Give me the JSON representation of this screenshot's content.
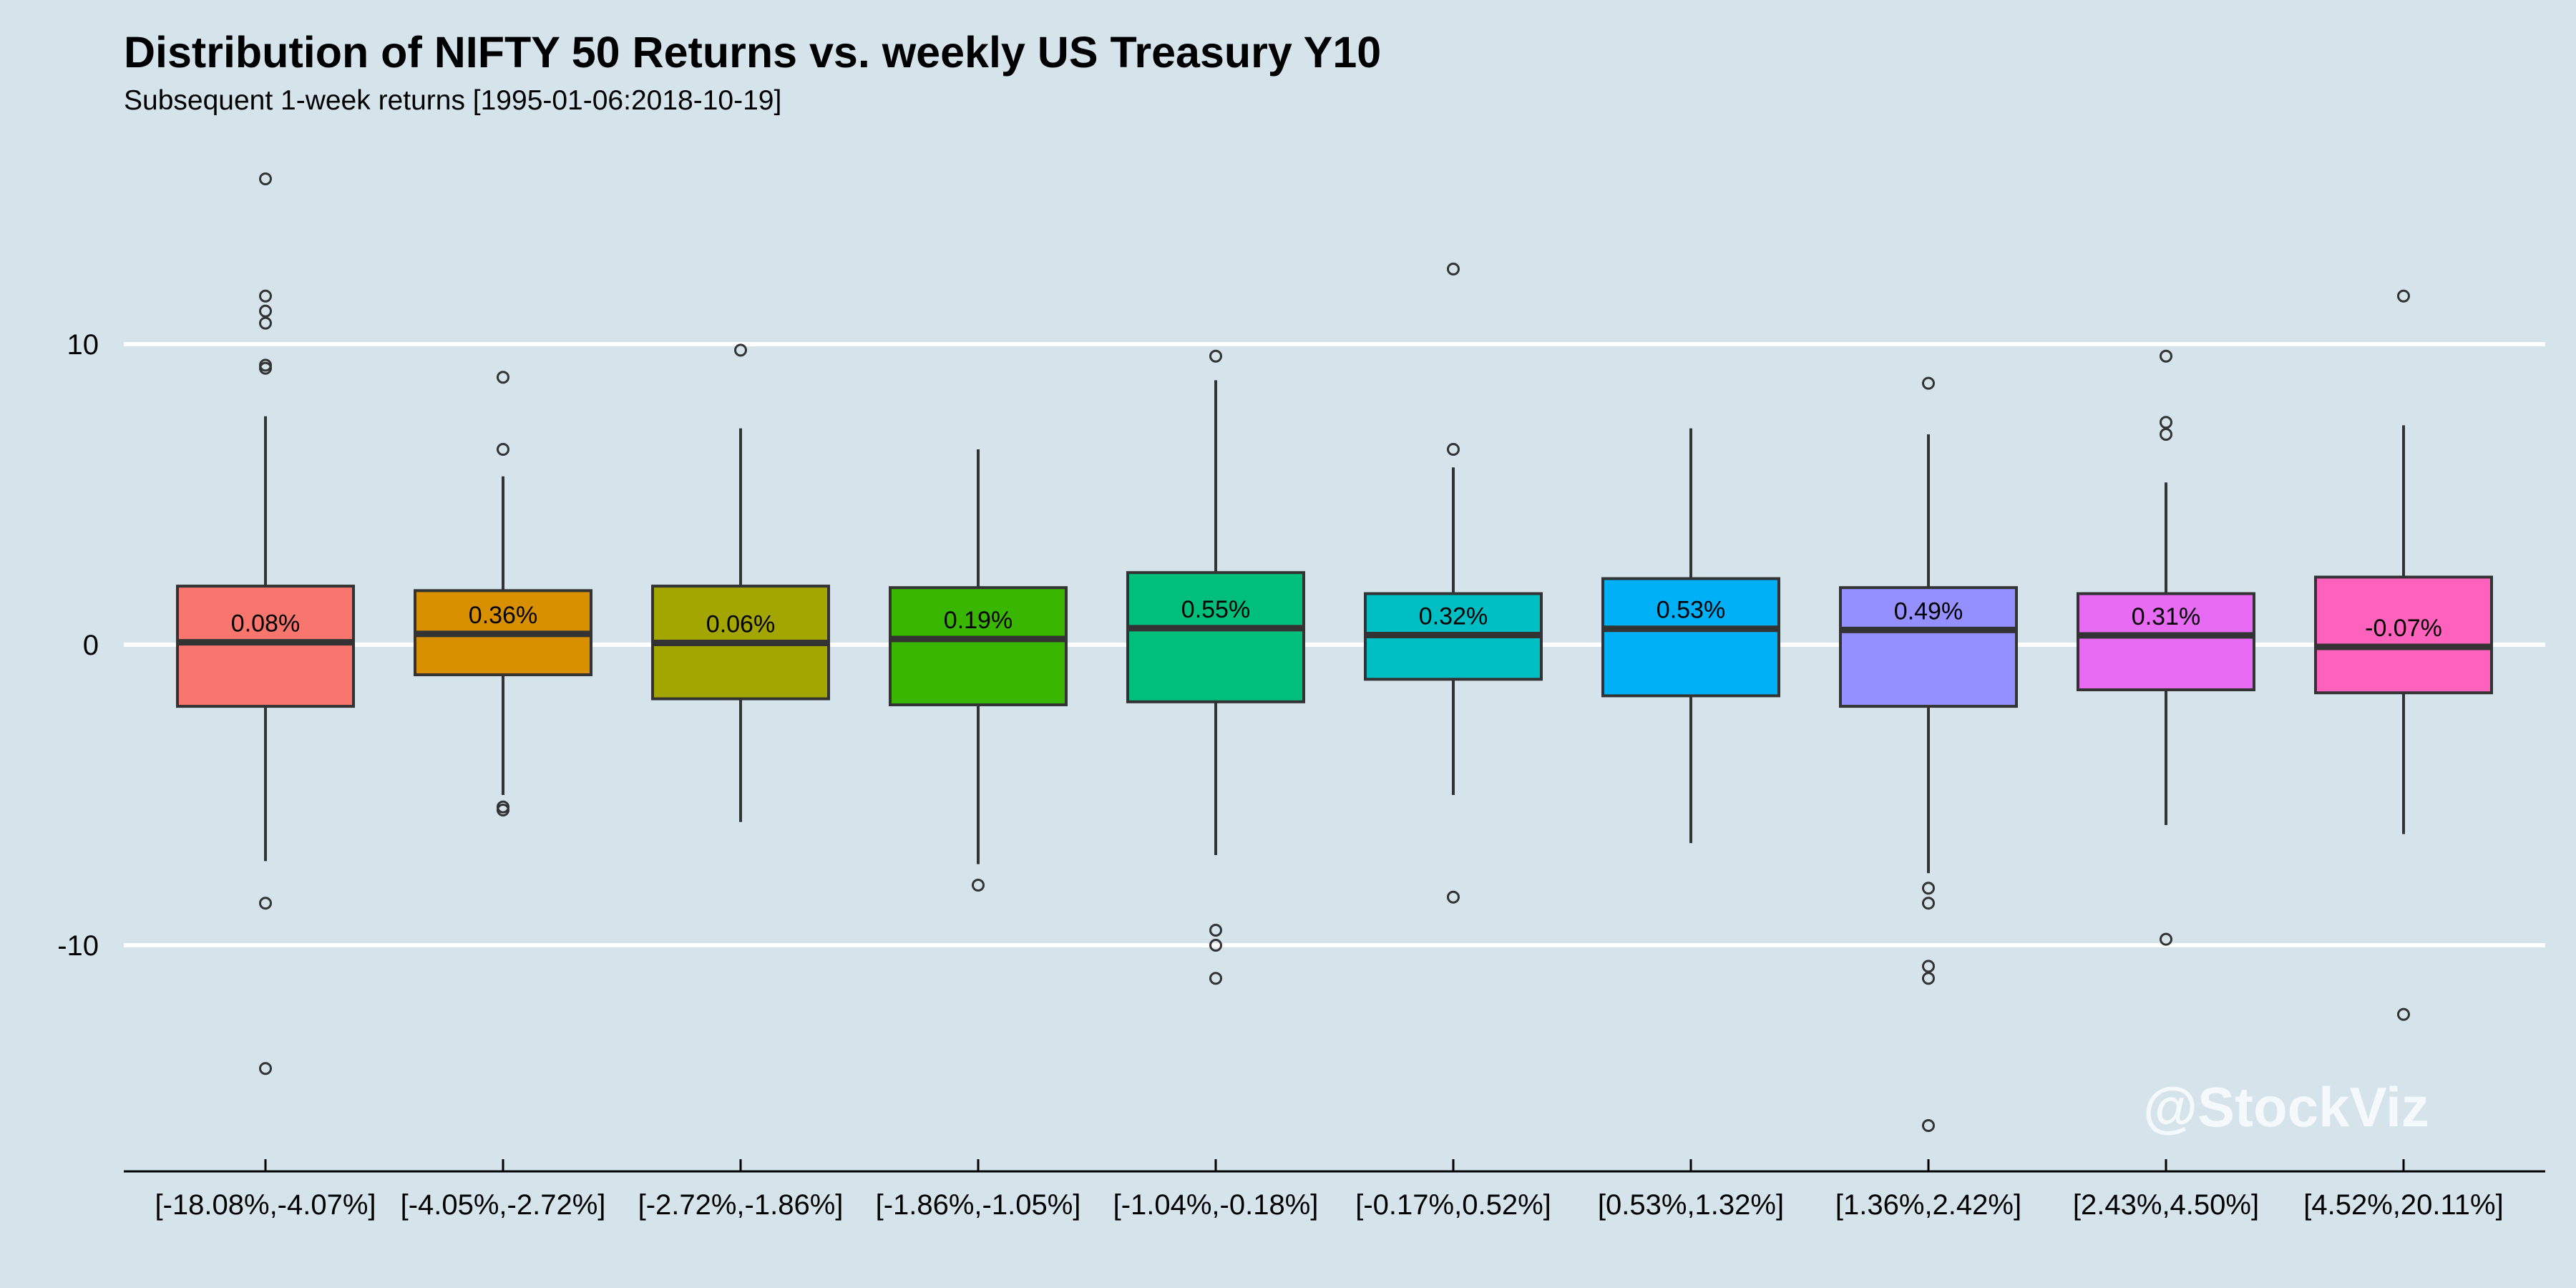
{
  "title": "Distribution of NIFTY 50 Returns vs. weekly US Treasury Y10",
  "subtitle": "Subsequent 1-week returns [1995-01-06:2018-10-19]",
  "watermark": "@StockViz",
  "colors": {
    "background": "#d5e4eb",
    "gridline": "#ffffff",
    "outline": "#333333",
    "fills": [
      "#f8766d",
      "#d89000",
      "#a3a500",
      "#39b600",
      "#00bf7d",
      "#00bfc4",
      "#00b0f6",
      "#9590ff",
      "#e76bf3",
      "#ff62bc"
    ]
  },
  "chart_data": {
    "type": "box",
    "title": "Distribution of NIFTY 50 Returns vs. weekly US Treasury Y10",
    "subtitle": "Subsequent 1-week returns [1995-01-06:2018-10-19]",
    "xlabel": "",
    "ylabel": "",
    "ylim": [
      -17.5,
      17.5
    ],
    "y_ticks": [
      -10,
      0,
      10
    ],
    "grid": true,
    "legend": "none",
    "categories": [
      "[-18.08%,-4.07%]",
      "[-4.05%,-2.72%]",
      "[-2.72%,-1.86%]",
      "[-1.86%,-1.05%]",
      "[-1.04%,-0.18%]",
      "[-0.17%,0.52%]",
      "[0.53%,1.32%]",
      "[1.36%,2.42%]",
      "[2.43%,4.50%]",
      "[4.52%,20.11%]"
    ],
    "boxes": [
      {
        "category": "[-18.08%,-4.07%]",
        "label": "0.08%",
        "median": 0.08,
        "q1": -2.05,
        "q3": 1.95,
        "whisker_low": -7.2,
        "whisker_high": 7.6,
        "outliers": [
          15.5,
          11.6,
          11.1,
          10.7,
          9.3,
          9.2,
          -8.6,
          -14.1
        ]
      },
      {
        "category": "[-4.05%,-2.72%]",
        "label": "0.36%",
        "median": 0.36,
        "q1": -1.0,
        "q3": 1.8,
        "whisker_low": -5.0,
        "whisker_high": 5.6,
        "outliers": [
          8.9,
          6.5,
          -5.4,
          -5.5
        ]
      },
      {
        "category": "[-2.72%,-1.86%]",
        "label": "0.06%",
        "median": 0.06,
        "q1": -1.8,
        "q3": 1.95,
        "whisker_low": -5.9,
        "whisker_high": 7.2,
        "outliers": [
          9.8
        ]
      },
      {
        "category": "[-1.86%,-1.05%]",
        "label": "0.19%",
        "median": 0.19,
        "q1": -2.0,
        "q3": 1.9,
        "whisker_low": -7.3,
        "whisker_high": 6.5,
        "outliers": [
          -8.0
        ]
      },
      {
        "category": "[-1.04%,-0.18%]",
        "label": "0.55%",
        "median": 0.55,
        "q1": -1.9,
        "q3": 2.4,
        "whisker_low": -7.0,
        "whisker_high": 8.8,
        "outliers": [
          9.6,
          -9.5,
          -10.0,
          -11.1
        ]
      },
      {
        "category": "[-0.17%,0.52%]",
        "label": "0.32%",
        "median": 0.32,
        "q1": -1.15,
        "q3": 1.7,
        "whisker_low": -5.0,
        "whisker_high": 5.9,
        "outliers": [
          12.5,
          6.5,
          -8.4
        ]
      },
      {
        "category": "[0.53%,1.32%]",
        "label": "0.53%",
        "median": 0.53,
        "q1": -1.7,
        "q3": 2.2,
        "whisker_low": -6.6,
        "whisker_high": 7.2,
        "outliers": []
      },
      {
        "category": "[1.36%,2.42%]",
        "label": "0.49%",
        "median": 0.49,
        "q1": -2.05,
        "q3": 1.9,
        "whisker_low": -7.6,
        "whisker_high": 7.0,
        "outliers": [
          8.7,
          -8.1,
          -8.6,
          -10.7,
          -11.1,
          -16.0
        ]
      },
      {
        "category": "[2.43%,4.50%]",
        "label": "0.31%",
        "median": 0.31,
        "q1": -1.5,
        "q3": 1.7,
        "whisker_low": -6.0,
        "whisker_high": 5.4,
        "outliers": [
          9.6,
          7.4,
          7.0,
          -9.8
        ]
      },
      {
        "category": "[4.52%,20.11%]",
        "label": "-0.07%",
        "median": -0.07,
        "q1": -1.6,
        "q3": 2.25,
        "whisker_low": -6.3,
        "whisker_high": 7.3,
        "outliers": [
          11.6,
          -12.3
        ]
      }
    ]
  }
}
